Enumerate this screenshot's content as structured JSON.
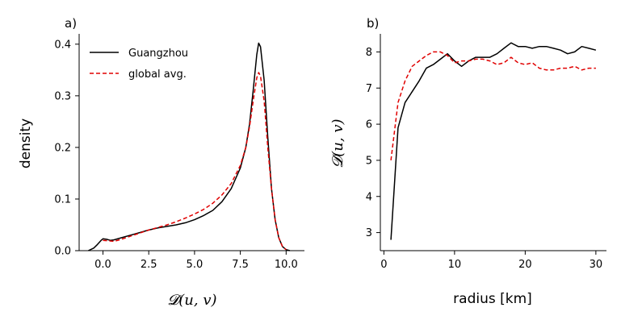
{
  "chart_data": [
    {
      "panel": "a)",
      "type": "line",
      "xlabel": "𝓓(u, v)",
      "ylabel": "density",
      "xlim": [
        -1.3,
        11.0
      ],
      "ylim": [
        0.0,
        0.42
      ],
      "xticks": [
        "0.0",
        "2.5",
        "5.0",
        "7.5",
        "10.0"
      ],
      "xtick_values": [
        0,
        2.5,
        5,
        7.5,
        10
      ],
      "yticks": [
        "0.0",
        "0.1",
        "0.2",
        "0.3",
        "0.4"
      ],
      "ytick_values": [
        0,
        0.1,
        0.2,
        0.3,
        0.4
      ],
      "grid": false,
      "legend": "top-left",
      "series": [
        {
          "name": "Guangzhou",
          "color": "#000000",
          "style": "solid",
          "x": [
            -0.8,
            -0.5,
            -0.3,
            -0.1,
            0.0,
            0.2,
            0.4,
            0.6,
            1.0,
            1.5,
            2.0,
            2.5,
            3.0,
            3.5,
            4.0,
            4.5,
            5.0,
            5.5,
            6.0,
            6.5,
            7.0,
            7.5,
            7.8,
            8.0,
            8.2,
            8.4,
            8.5,
            8.6,
            8.8,
            9.0,
            9.2,
            9.4,
            9.6,
            9.8,
            10.0,
            10.2
          ],
          "y": [
            0.0,
            0.005,
            0.012,
            0.02,
            0.023,
            0.022,
            0.02,
            0.021,
            0.025,
            0.03,
            0.035,
            0.04,
            0.044,
            0.047,
            0.05,
            0.054,
            0.06,
            0.068,
            0.078,
            0.095,
            0.12,
            0.16,
            0.2,
            0.245,
            0.31,
            0.38,
            0.402,
            0.395,
            0.33,
            0.22,
            0.12,
            0.06,
            0.025,
            0.008,
            0.002,
            0.0
          ]
        },
        {
          "name": "global avg.",
          "color": "#e00000",
          "style": "dashed",
          "x": [
            0.0,
            0.3,
            0.6,
            1.0,
            1.5,
            2.0,
            2.5,
            3.0,
            3.5,
            4.0,
            4.5,
            5.0,
            5.5,
            6.0,
            6.5,
            7.0,
            7.5,
            7.8,
            8.0,
            8.2,
            8.4,
            8.5,
            8.6,
            8.8,
            9.0,
            9.2,
            9.4,
            9.6,
            9.8,
            10.0
          ],
          "y": [
            0.02,
            0.019,
            0.018,
            0.022,
            0.028,
            0.034,
            0.04,
            0.045,
            0.05,
            0.056,
            0.063,
            0.071,
            0.08,
            0.092,
            0.108,
            0.13,
            0.165,
            0.2,
            0.24,
            0.29,
            0.335,
            0.345,
            0.338,
            0.29,
            0.2,
            0.12,
            0.06,
            0.025,
            0.008,
            0.002
          ]
        }
      ]
    },
    {
      "panel": "b)",
      "type": "line",
      "xlabel": "radius [km]",
      "ylabel": "𝓓(u, v)",
      "xlim": [
        -0.5,
        31.5
      ],
      "ylim": [
        2.5,
        8.5
      ],
      "xticks": [
        "0",
        "10",
        "20",
        "30"
      ],
      "xtick_values": [
        0,
        10,
        20,
        30
      ],
      "yticks": [
        "3",
        "4",
        "5",
        "6",
        "7",
        "8"
      ],
      "ytick_values": [
        3,
        4,
        5,
        6,
        7,
        8
      ],
      "grid": false,
      "series": [
        {
          "name": "Guangzhou",
          "color": "#000000",
          "style": "solid",
          "x": [
            1,
            2,
            3,
            4,
            5,
            6,
            7,
            8,
            9,
            10,
            11,
            12,
            13,
            14,
            15,
            16,
            17,
            18,
            19,
            20,
            21,
            22,
            23,
            24,
            25,
            26,
            27,
            28,
            29,
            30
          ],
          "y": [
            2.8,
            5.9,
            6.6,
            6.9,
            7.2,
            7.55,
            7.65,
            7.8,
            7.95,
            7.75,
            7.6,
            7.75,
            7.85,
            7.85,
            7.85,
            7.95,
            8.1,
            8.25,
            8.15,
            8.15,
            8.1,
            8.15,
            8.15,
            8.1,
            8.05,
            7.95,
            8.0,
            8.15,
            8.1,
            8.05
          ]
        },
        {
          "name": "global avg.",
          "color": "#e00000",
          "style": "dashed",
          "x": [
            1,
            2,
            3,
            4,
            5,
            6,
            7,
            8,
            9,
            10,
            11,
            12,
            13,
            14,
            15,
            16,
            17,
            18,
            19,
            20,
            21,
            22,
            23,
            24,
            25,
            26,
            27,
            28,
            29,
            30
          ],
          "y": [
            5.0,
            6.6,
            7.2,
            7.6,
            7.75,
            7.9,
            8.0,
            8.0,
            7.9,
            7.7,
            7.75,
            7.75,
            7.8,
            7.8,
            7.75,
            7.65,
            7.7,
            7.85,
            7.7,
            7.65,
            7.7,
            7.55,
            7.5,
            7.5,
            7.55,
            7.55,
            7.6,
            7.5,
            7.55,
            7.55
          ]
        }
      ]
    }
  ]
}
